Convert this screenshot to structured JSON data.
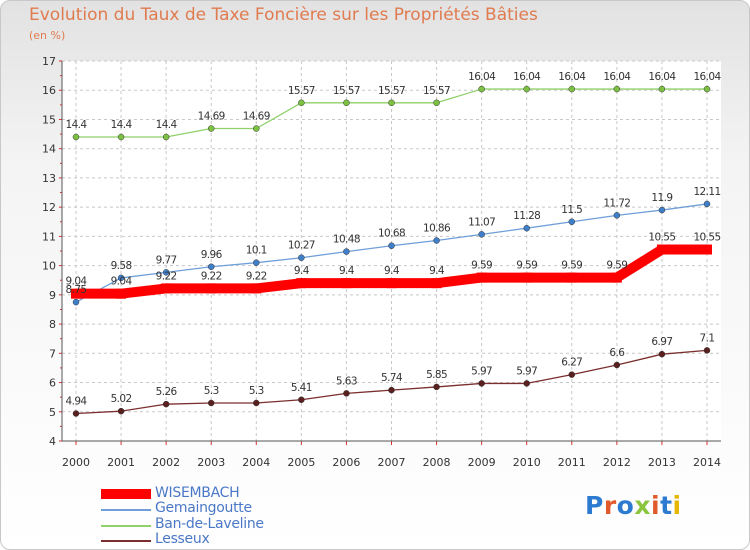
{
  "title": "Evolution du Taux de Taxe Foncière sur les Propriétés Bâties",
  "unit_label": "(en %)",
  "logo": {
    "text": "Proxiti",
    "colors": [
      "#2c7bd1",
      "#e05a2b",
      "#2c7bd1",
      "#8cc63f",
      "#e05a2b",
      "#2c7bd1",
      "#e5b700"
    ]
  },
  "chart_data": {
    "type": "line",
    "x": [
      2000,
      2001,
      2002,
      2003,
      2004,
      2005,
      2006,
      2007,
      2008,
      2009,
      2010,
      2011,
      2012,
      2013,
      2014
    ],
    "ylim": [
      4,
      17
    ],
    "yticks": [
      4,
      5,
      6,
      7,
      8,
      9,
      10,
      11,
      12,
      13,
      14,
      15,
      16,
      17
    ],
    "grid": true,
    "legend_placement": "bottom-left",
    "series": [
      {
        "name": "WISEMBACH",
        "color": "#ff0000",
        "marker_color": "#ff0000",
        "thick": true,
        "values": [
          9.04,
          9.04,
          9.22,
          9.22,
          9.22,
          9.4,
          9.4,
          9.4,
          9.4,
          9.59,
          9.59,
          9.59,
          9.59,
          10.55,
          10.55
        ],
        "labels": [
          "9.04",
          "9.04",
          "9.22",
          "9.22",
          "9.22",
          "9.4",
          "9.4",
          "9.4",
          "9.4",
          "9.59",
          "9.59",
          "9.59",
          "9.59",
          "10.55",
          "10.55"
        ]
      },
      {
        "name": "Gemaingoutte",
        "color": "#6f9fd8",
        "marker_color": "#3f7fc9",
        "values": [
          8.75,
          9.58,
          9.77,
          9.96,
          10.1,
          10.27,
          10.48,
          10.68,
          10.86,
          11.07,
          11.28,
          11.5,
          11.72,
          11.9,
          12.11
        ],
        "labels": [
          "8.75",
          "9.58",
          "9.77",
          "9.96",
          "10.1",
          "10.27",
          "10.48",
          "10.68",
          "10.86",
          "11.07",
          "11.28",
          "11.5",
          "11.72",
          "11.9",
          "12.11"
        ]
      },
      {
        "name": "Ban-de-Laveline",
        "color": "#8fd16a",
        "marker_color": "#7cc142",
        "values": [
          14.4,
          14.4,
          14.4,
          14.69,
          14.69,
          15.57,
          15.57,
          15.57,
          15.57,
          16.04,
          16.04,
          16.04,
          16.04,
          16.04,
          16.04
        ],
        "labels": [
          "14.4",
          "14.4",
          "14.4",
          "14.69",
          "14.69",
          "15.57",
          "15.57",
          "15.57",
          "15.57",
          "16.04",
          "16.04",
          "16.04",
          "16.04",
          "16.04",
          "16.04"
        ]
      },
      {
        "name": "Lesseux",
        "color": "#7b2e2e",
        "marker_color": "#5a1f1f",
        "values": [
          4.94,
          5.02,
          5.26,
          5.3,
          5.3,
          5.41,
          5.63,
          5.74,
          5.85,
          5.97,
          5.97,
          6.27,
          6.6,
          6.97,
          7.1
        ],
        "labels": [
          "4.94",
          "5.02",
          "5.26",
          "5.3",
          "5.3",
          "5.41",
          "5.63",
          "5.74",
          "5.85",
          "5.97",
          "5.97",
          "6.27",
          "6.6",
          "6.97",
          "7.1"
        ]
      }
    ]
  }
}
